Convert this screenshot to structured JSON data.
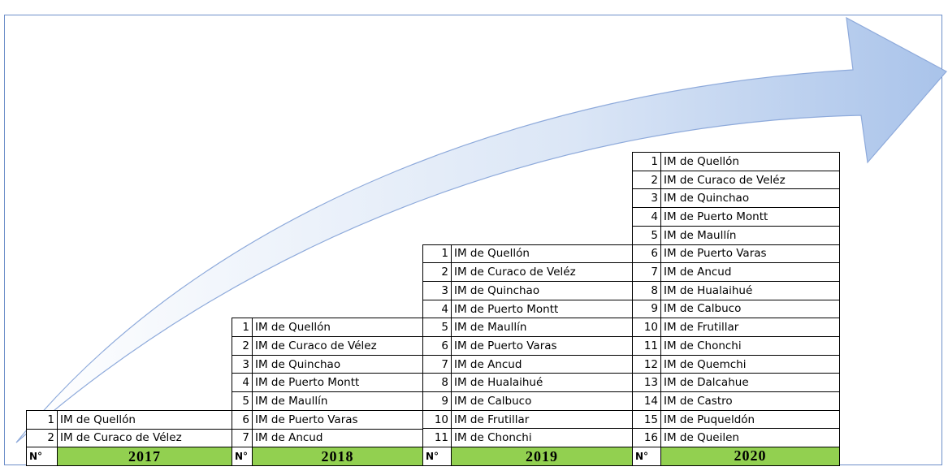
{
  "tables": [
    {
      "header": "N°",
      "year": "2017",
      "rows": [
        {
          "n": 1,
          "name": "IM de Quellón"
        },
        {
          "n": 2,
          "name": "IM de Curaco de Vélez"
        }
      ]
    },
    {
      "header": "N°",
      "year": "2018",
      "rows": [
        {
          "n": 1,
          "name": "IM de Quellón"
        },
        {
          "n": 2,
          "name": "IM de Curaco de Vélez"
        },
        {
          "n": 3,
          "name": "IM de Quinchao"
        },
        {
          "n": 4,
          "name": "IM de Puerto Montt"
        },
        {
          "n": 5,
          "name": "IM de Maullín"
        },
        {
          "n": 6,
          "name": "IM de Puerto Varas"
        },
        {
          "n": 7,
          "name": "IM de Ancud"
        }
      ]
    },
    {
      "header": "N°",
      "year": "2019",
      "rows": [
        {
          "n": 1,
          "name": "IM de Quellón"
        },
        {
          "n": 2,
          "name": "IM de Curaco de Veléz"
        },
        {
          "n": 3,
          "name": "IM de Quinchao"
        },
        {
          "n": 4,
          "name": "IM de Puerto Montt"
        },
        {
          "n": 5,
          "name": "IM de Maullín"
        },
        {
          "n": 6,
          "name": "IM de Puerto Varas"
        },
        {
          "n": 7,
          "name": "IM de Ancud"
        },
        {
          "n": 8,
          "name": "IM de Hualaihué"
        },
        {
          "n": 9,
          "name": "IM de Calbuco"
        },
        {
          "n": 10,
          "name": "IM de Frutillar"
        },
        {
          "n": 11,
          "name": "IM de Chonchi"
        }
      ]
    },
    {
      "header": "N°",
      "year": "2020",
      "rows": [
        {
          "n": 1,
          "name": "IM de Quellón"
        },
        {
          "n": 2,
          "name": "IM de Curaco de Veléz"
        },
        {
          "n": 3,
          "name": "IM de Quinchao"
        },
        {
          "n": 4,
          "name": "IM de Puerto Montt"
        },
        {
          "n": 5,
          "name": "IM de Maullín"
        },
        {
          "n": 6,
          "name": "IM de Puerto Varas"
        },
        {
          "n": 7,
          "name": "IM de Ancud"
        },
        {
          "n": 8,
          "name": "IM de Hualaihué"
        },
        {
          "n": 9,
          "name": "IM de Calbuco"
        },
        {
          "n": 10,
          "name": "IM de Frutillar"
        },
        {
          "n": 11,
          "name": "IM de Chonchi"
        },
        {
          "n": 12,
          "name": "IM de Quemchi"
        },
        {
          "n": 13,
          "name": "IM de Dalcahue"
        },
        {
          "n": 14,
          "name": "IM de Castro"
        },
        {
          "n": 15,
          "name": "IM de Puqueldón"
        },
        {
          "n": 16,
          "name": "IM de Queilen"
        }
      ]
    }
  ]
}
